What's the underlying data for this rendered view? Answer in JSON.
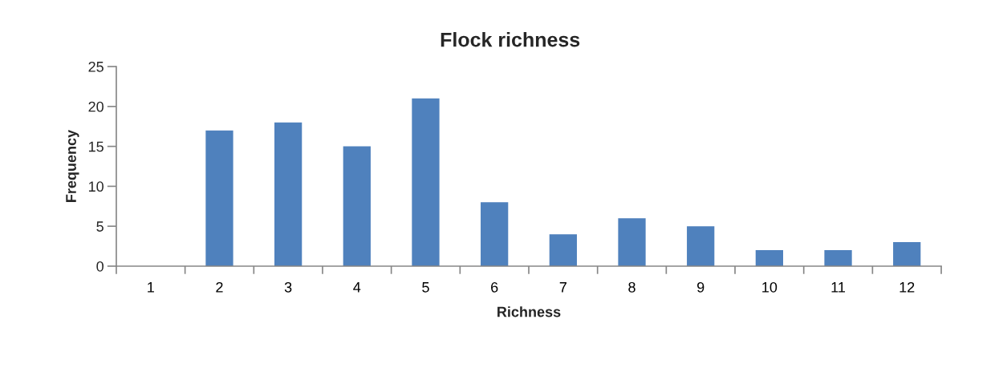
{
  "chart_data": {
    "type": "bar",
    "title": "Flock richness",
    "xlabel": "Richness",
    "ylabel": "Frequency",
    "categories": [
      "1",
      "2",
      "3",
      "4",
      "5",
      "6",
      "7",
      "8",
      "9",
      "10",
      "11",
      "12"
    ],
    "values": [
      0,
      17,
      18,
      15,
      21,
      8,
      4,
      6,
      5,
      2,
      2,
      3
    ],
    "color": "#4f81bd",
    "ylim": [
      0,
      25
    ],
    "yticks": [
      0,
      5,
      10,
      15,
      20,
      25
    ],
    "grid": false,
    "legend": false
  }
}
